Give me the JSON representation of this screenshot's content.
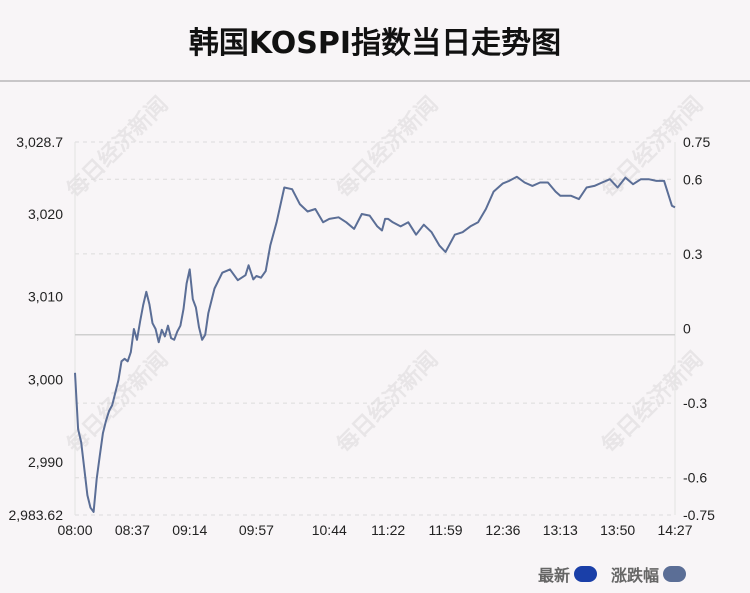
{
  "title": "韩国KOSPI指数当日走势图",
  "watermark": "每日经济新闻",
  "legend": [
    {
      "label": "最新",
      "color": "#1a3fa8"
    },
    {
      "label": "涨跌幅",
      "color": "#5b6e96"
    }
  ],
  "chart_data": {
    "type": "line",
    "title": "韩国KOSPI指数当日走势图",
    "x_ticks": [
      "08:00",
      "08:37",
      "09:14",
      "09:57",
      "10:44",
      "11:22",
      "11:59",
      "12:36",
      "13:13",
      "13:50",
      "14:27"
    ],
    "y_left_ticks": [
      "2,983.62",
      "2,990",
      "3,000",
      "3,010",
      "3,020",
      "3,028.7"
    ],
    "y_right_ticks": [
      "-0.75",
      "-0.6",
      "-0.3",
      "0",
      "0.3",
      "0.6",
      "0.75"
    ],
    "ylim_left": [
      2983.62,
      3028.7
    ],
    "ylim_right": [
      -0.75,
      0.75
    ],
    "baseline": 3005.4,
    "line_color": "#5b6e96",
    "grid": "horizontal-dashed",
    "legend_position": "bottom-right",
    "series": [
      {
        "x": [
          "08:00",
          "08:02",
          "08:04",
          "08:06",
          "08:08",
          "08:10",
          "08:12",
          "08:14",
          "08:16",
          "08:18",
          "08:20",
          "08:22",
          "08:24",
          "08:26",
          "08:28",
          "08:30",
          "08:32",
          "08:34",
          "08:36",
          "08:38",
          "08:40",
          "08:42",
          "08:44",
          "08:46",
          "08:48",
          "08:50",
          "08:52",
          "08:54",
          "08:56",
          "08:58",
          "09:00",
          "09:02",
          "09:04",
          "09:06",
          "09:08",
          "09:10",
          "09:12",
          "09:14",
          "09:16",
          "09:18",
          "09:20",
          "09:22",
          "09:24",
          "09:26",
          "09:28",
          "09:30",
          "09:35",
          "09:40",
          "09:45",
          "09:50",
          "09:52",
          "09:55",
          "09:57",
          "10:00",
          "10:03",
          "10:06",
          "10:10",
          "10:15",
          "10:20",
          "10:25",
          "10:30",
          "10:35",
          "10:40",
          "10:44",
          "10:50",
          "10:55",
          "11:00",
          "11:05",
          "11:10",
          "11:15",
          "11:18",
          "11:20",
          "11:22",
          "11:25",
          "11:30",
          "11:35",
          "11:40",
          "11:45",
          "11:50",
          "11:55",
          "11:59",
          "12:05",
          "12:10",
          "12:15",
          "12:20",
          "12:25",
          "12:30",
          "12:36",
          "12:40",
          "12:45",
          "12:50",
          "12:55",
          "13:00",
          "13:05",
          "13:10",
          "13:13",
          "13:15",
          "13:20",
          "13:25",
          "13:30",
          "13:35",
          "13:40",
          "13:45",
          "13:50",
          "13:55",
          "14:00",
          "14:05",
          "14:10",
          "14:15",
          "14:20",
          "14:25",
          "14:27"
        ],
        "values": [
          3000.8,
          2994.0,
          2992.4,
          2989.2,
          2986.0,
          2984.5,
          2984.0,
          2988.0,
          2990.8,
          2993.5,
          2995.0,
          2996.2,
          2996.9,
          2998.4,
          2999.9,
          3002.2,
          3002.5,
          3002.2,
          3003.3,
          3006.1,
          3004.8,
          3007.0,
          3009.0,
          3010.6,
          3009.1,
          3006.8,
          3006.1,
          3004.5,
          3006.0,
          3005.2,
          3006.5,
          3005.0,
          3004.8,
          3005.8,
          3006.5,
          3008.5,
          3011.6,
          3013.3,
          3009.7,
          3008.7,
          3006.3,
          3004.8,
          3005.4,
          3008.0,
          3009.5,
          3011.0,
          3012.9,
          3013.3,
          3012.0,
          3012.6,
          3013.8,
          3012.1,
          3012.5,
          3012.3,
          3013.1,
          3016.2,
          3019.0,
          3023.2,
          3023.0,
          3021.2,
          3020.3,
          3020.6,
          3019.0,
          3019.4,
          3019.6,
          3019.0,
          3018.2,
          3020.0,
          3019.8,
          3018.5,
          3018.0,
          3019.4,
          3019.4,
          3019.0,
          3018.5,
          3019.0,
          3017.5,
          3018.7,
          3017.8,
          3016.2,
          3015.4,
          3017.5,
          3017.8,
          3018.5,
          3019.0,
          3020.6,
          3022.7,
          3023.7,
          3024.0,
          3024.5,
          3023.8,
          3023.4,
          3023.8,
          3023.8,
          3022.7,
          3022.2,
          3022.2,
          3022.2,
          3021.8,
          3023.2,
          3023.4,
          3023.8,
          3024.2,
          3023.2,
          3024.4,
          3023.6,
          3024.2,
          3024.2,
          3024.0,
          3024.0,
          3021.0,
          3020.8
        ]
      }
    ]
  }
}
